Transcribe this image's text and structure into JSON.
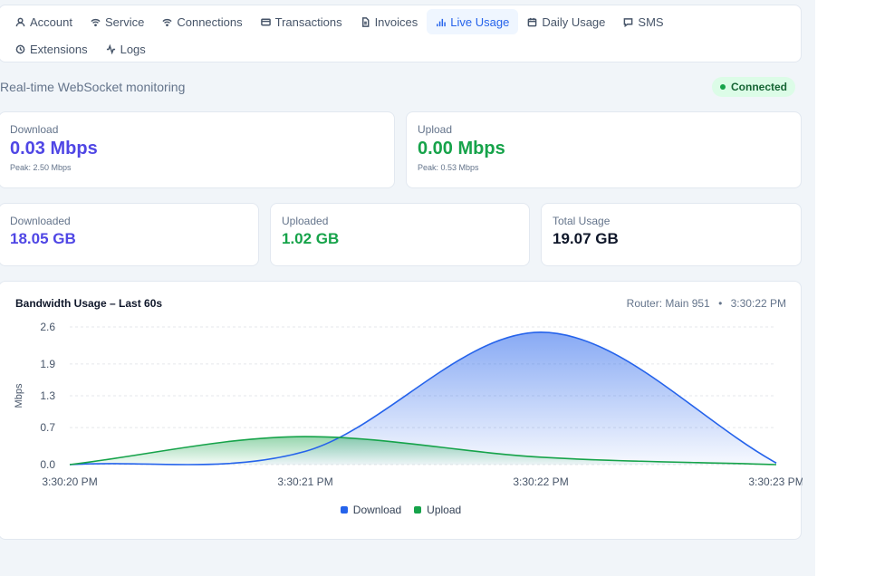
{
  "nav": {
    "row1": [
      {
        "label": "Account",
        "icon": "user-icon"
      },
      {
        "label": "Service",
        "icon": "wifi-icon"
      },
      {
        "label": "Connections",
        "icon": "wifi-icon"
      },
      {
        "label": "Transactions",
        "icon": "card-icon"
      },
      {
        "label": "Invoices",
        "icon": "document-icon"
      },
      {
        "label": "Live Usage",
        "icon": "bar-chart-icon",
        "active": true
      },
      {
        "label": "Daily Usage",
        "icon": "calendar-icon"
      },
      {
        "label": "SMS",
        "icon": "message-icon"
      }
    ],
    "row2": [
      {
        "label": "Extensions",
        "icon": "clock-icon"
      },
      {
        "label": "Logs",
        "icon": "activity-icon"
      }
    ]
  },
  "header": {
    "subtitle": "Real-time WebSocket monitoring",
    "status": "Connected",
    "status_color": "#16a34a"
  },
  "rates": {
    "download": {
      "label": "Download",
      "value": "0.03 Mbps",
      "peak": "Peak: 2.50 Mbps"
    },
    "upload": {
      "label": "Upload",
      "value": "0.00 Mbps",
      "peak": "Peak: 0.53 Mbps"
    }
  },
  "totals": {
    "downloaded": {
      "label": "Downloaded",
      "value": "18.05 GB"
    },
    "uploaded": {
      "label": "Uploaded",
      "value": "1.02 GB"
    },
    "total": {
      "label": "Total Usage",
      "value": "19.07 GB"
    }
  },
  "chart": {
    "title": "Bandwidth Usage – Last 60s",
    "router": "Router: Main 951",
    "separator": "•",
    "time": "3:30:22 PM",
    "legend": [
      {
        "label": "Download",
        "color": "#2563eb"
      },
      {
        "label": "Upload",
        "color": "#16a34a"
      }
    ]
  },
  "chart_data": {
    "type": "area",
    "title": "Bandwidth Usage – Last 60s",
    "xlabel": "",
    "ylabel": "Mbps",
    "x": [
      "3:30:20 PM",
      "3:30:21 PM",
      "3:30:22 PM",
      "3:30:23 PM"
    ],
    "yticks": [
      "0.0",
      "0.7",
      "1.3",
      "1.9",
      "2.6"
    ],
    "ylim": [
      0,
      2.6
    ],
    "series": [
      {
        "name": "Download",
        "color": "#2563eb",
        "values": [
          0.0,
          0.25,
          2.5,
          0.03
        ]
      },
      {
        "name": "Upload",
        "color": "#16a34a",
        "values": [
          0.0,
          0.53,
          0.14,
          0.0
        ]
      }
    ],
    "grid": true,
    "legend": "bottom-center"
  }
}
